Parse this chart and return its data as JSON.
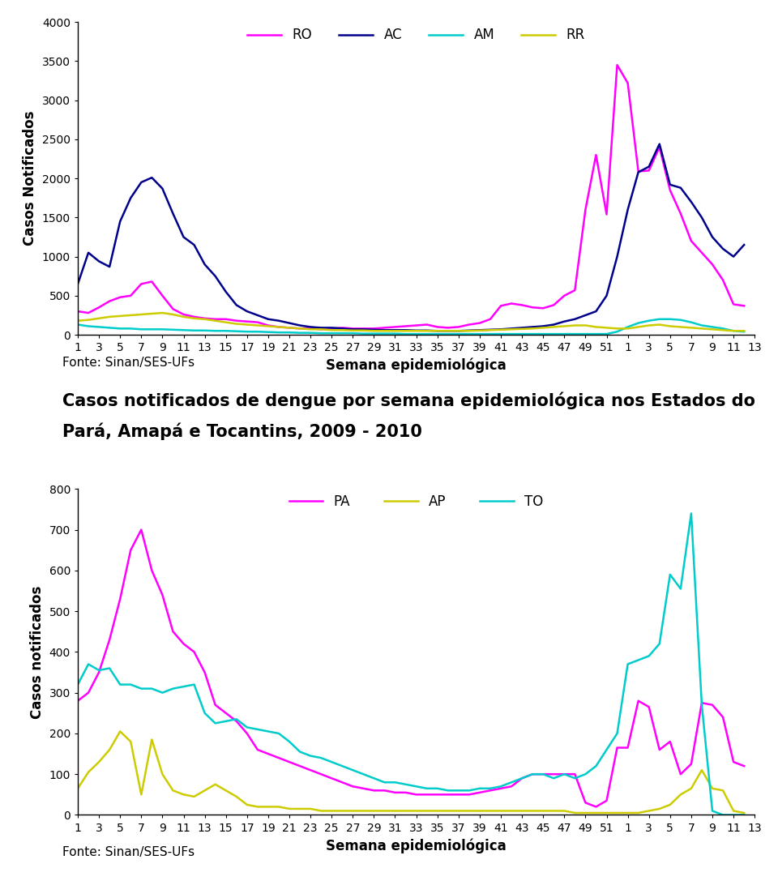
{
  "chart1": {
    "ylabel": "Casos Notificados",
    "xlabel": "Semana epidemiológica",
    "ylim": [
      0,
      4000
    ],
    "yticks": [
      0,
      500,
      1000,
      1500,
      2000,
      2500,
      3000,
      3500,
      4000
    ],
    "legend_labels": [
      "RO",
      "AC",
      "AM",
      "RR"
    ],
    "colors": [
      "#ff00ff",
      "#00008b",
      "#00cccc",
      "#cccc00"
    ],
    "fonte": "Fonte: Sinan/SES-UFs",
    "RO": [
      300,
      280,
      350,
      430,
      480,
      500,
      650,
      680,
      500,
      330,
      260,
      230,
      210,
      200,
      200,
      180,
      170,
      160,
      120,
      100,
      90,
      80,
      80,
      70,
      80,
      90,
      80,
      80,
      80,
      90,
      100,
      110,
      120,
      130,
      100,
      90,
      100,
      130,
      150,
      200,
      370,
      400,
      380,
      350,
      340,
      380,
      500,
      570,
      1600,
      2300,
      1540,
      3450,
      3220,
      2090,
      2100,
      2400,
      1850,
      1550,
      1200,
      1050,
      900,
      700,
      390,
      370
    ],
    "AC": [
      650,
      1050,
      940,
      870,
      1450,
      1750,
      1950,
      2010,
      1870,
      1550,
      1250,
      1150,
      900,
      750,
      550,
      380,
      300,
      250,
      200,
      180,
      150,
      120,
      100,
      90,
      90,
      80,
      70,
      70,
      65,
      60,
      60,
      60,
      55,
      55,
      50,
      50,
      50,
      55,
      60,
      65,
      70,
      80,
      90,
      100,
      110,
      130,
      170,
      200,
      250,
      300,
      500,
      1000,
      1600,
      2080,
      2150,
      2440,
      1920,
      1880,
      1700,
      1500,
      1250,
      1100,
      1000,
      1150
    ],
    "AM": [
      130,
      110,
      100,
      90,
      80,
      80,
      70,
      70,
      70,
      65,
      60,
      55,
      55,
      50,
      50,
      45,
      40,
      40,
      35,
      30,
      30,
      25,
      25,
      20,
      20,
      20,
      20,
      15,
      15,
      15,
      15,
      10,
      10,
      10,
      10,
      10,
      10,
      10,
      10,
      10,
      10,
      10,
      10,
      10,
      10,
      10,
      10,
      10,
      10,
      10,
      10,
      40,
      100,
      150,
      180,
      200,
      200,
      190,
      160,
      120,
      100,
      80,
      50,
      40
    ],
    "RR": [
      180,
      190,
      210,
      230,
      240,
      250,
      260,
      270,
      280,
      260,
      230,
      210,
      200,
      180,
      160,
      140,
      130,
      120,
      110,
      100,
      90,
      80,
      70,
      70,
      60,
      60,
      55,
      55,
      50,
      50,
      50,
      50,
      50,
      50,
      50,
      50,
      50,
      50,
      55,
      60,
      65,
      70,
      75,
      80,
      90,
      100,
      110,
      120,
      120,
      100,
      90,
      80,
      80,
      100,
      120,
      130,
      110,
      100,
      90,
      80,
      70,
      60,
      50,
      50
    ]
  },
  "chart2": {
    "title_line1": "Casos notificados de dengue por semana epidemiológica nos Estados do",
    "title_line2": "Pará, Amapá e Tocantins, 2009 - 2010",
    "ylabel": "Casos notificados",
    "xlabel": "Semana epidemiológica",
    "ylim": [
      0,
      800
    ],
    "yticks": [
      0,
      100,
      200,
      300,
      400,
      500,
      600,
      700,
      800
    ],
    "legend_labels": [
      "PA",
      "AP",
      "TO"
    ],
    "colors": [
      "#ff00ff",
      "#cccc00",
      "#00cccc"
    ],
    "fonte": "Fonte: Sinan/SES-UFs",
    "PA": [
      280,
      300,
      350,
      430,
      530,
      650,
      700,
      600,
      540,
      450,
      420,
      400,
      350,
      270,
      250,
      230,
      200,
      160,
      150,
      140,
      130,
      120,
      110,
      100,
      90,
      80,
      70,
      65,
      60,
      60,
      55,
      55,
      50,
      50,
      50,
      50,
      50,
      50,
      55,
      60,
      65,
      70,
      90,
      100,
      100,
      100,
      100,
      100,
      30,
      20,
      35,
      165,
      165,
      280,
      265,
      160,
      180,
      100,
      125,
      275,
      270,
      240,
      130,
      120
    ],
    "AP": [
      65,
      105,
      130,
      160,
      205,
      180,
      50,
      185,
      100,
      60,
      50,
      45,
      60,
      75,
      60,
      45,
      25,
      20,
      20,
      20,
      15,
      15,
      15,
      10,
      10,
      10,
      10,
      10,
      10,
      10,
      10,
      10,
      10,
      10,
      10,
      10,
      10,
      10,
      10,
      10,
      10,
      10,
      10,
      10,
      10,
      10,
      10,
      5,
      5,
      5,
      5,
      5,
      5,
      5,
      10,
      15,
      25,
      50,
      65,
      110,
      65,
      60,
      10,
      5
    ],
    "TO": [
      320,
      370,
      355,
      360,
      320,
      320,
      310,
      310,
      300,
      310,
      315,
      320,
      250,
      225,
      230,
      235,
      215,
      210,
      205,
      200,
      180,
      155,
      145,
      140,
      130,
      120,
      110,
      100,
      90,
      80,
      80,
      75,
      70,
      65,
      65,
      60,
      60,
      60,
      65,
      65,
      70,
      80,
      90,
      100,
      100,
      90,
      100,
      90,
      100,
      120,
      160,
      200,
      370,
      380,
      390,
      420,
      590,
      555,
      740,
      270,
      10,
      0,
      0,
      0
    ]
  },
  "background_color": "#ffffff",
  "title_fontsize": 15,
  "label_fontsize": 12,
  "tick_fontsize": 10,
  "legend_fontsize": 12,
  "line_width": 1.8,
  "fonte_fontsize": 11
}
